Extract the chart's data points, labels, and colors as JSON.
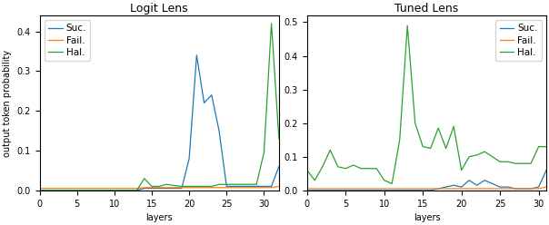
{
  "logit_lens": {
    "title": "Logit Lens",
    "suc": [
      0.0,
      0.0,
      0.0,
      0.0,
      0.0,
      0.0,
      0.0,
      0.0,
      0.0,
      0.0,
      0.0,
      0.0,
      0.0,
      0.0,
      0.005,
      0.005,
      0.005,
      0.005,
      0.005,
      0.005,
      0.08,
      0.34,
      0.22,
      0.24,
      0.15,
      0.01,
      0.01,
      0.01,
      0.01,
      0.01,
      0.01,
      0.01,
      0.06
    ],
    "fail": [
      0.005,
      0.005,
      0.005,
      0.005,
      0.005,
      0.005,
      0.005,
      0.005,
      0.005,
      0.005,
      0.005,
      0.005,
      0.005,
      0.005,
      0.007,
      0.007,
      0.007,
      0.007,
      0.007,
      0.007,
      0.007,
      0.007,
      0.007,
      0.007,
      0.007,
      0.007,
      0.007,
      0.007,
      0.007,
      0.007,
      0.007,
      0.007,
      0.01
    ],
    "hal": [
      0.0,
      0.0,
      0.0,
      0.0,
      0.0,
      0.0,
      0.0,
      0.0,
      0.0,
      0.0,
      0.0,
      0.0,
      0.0,
      0.0,
      0.03,
      0.01,
      0.01,
      0.015,
      0.012,
      0.01,
      0.01,
      0.01,
      0.01,
      0.01,
      0.015,
      0.015,
      0.015,
      0.015,
      0.015,
      0.015,
      0.095,
      0.42,
      0.13
    ],
    "ylim": [
      0,
      0.44
    ],
    "yticks": [
      0.0,
      0.1,
      0.2,
      0.3,
      0.4
    ],
    "legend_loc": "upper left"
  },
  "tuned_lens": {
    "title": "Tuned Lens",
    "suc": [
      0.0,
      0.0,
      0.0,
      0.0,
      0.0,
      0.0,
      0.0,
      0.0,
      0.0,
      0.0,
      0.0,
      0.0,
      0.0,
      0.0,
      0.0,
      0.0,
      0.0,
      0.005,
      0.01,
      0.015,
      0.01,
      0.03,
      0.015,
      0.03,
      0.02,
      0.01,
      0.01,
      0.005,
      0.005,
      0.005,
      0.01,
      0.06
    ],
    "fail": [
      0.005,
      0.005,
      0.005,
      0.005,
      0.005,
      0.005,
      0.005,
      0.005,
      0.005,
      0.005,
      0.005,
      0.005,
      0.005,
      0.005,
      0.005,
      0.005,
      0.005,
      0.005,
      0.005,
      0.005,
      0.005,
      0.005,
      0.005,
      0.005,
      0.005,
      0.005,
      0.005,
      0.005,
      0.005,
      0.005,
      0.005,
      0.01
    ],
    "hal": [
      0.06,
      0.03,
      0.07,
      0.12,
      0.07,
      0.065,
      0.075,
      0.065,
      0.065,
      0.065,
      0.03,
      0.02,
      0.15,
      0.49,
      0.2,
      0.13,
      0.125,
      0.185,
      0.125,
      0.19,
      0.06,
      0.1,
      0.105,
      0.115,
      0.1,
      0.085,
      0.085,
      0.08,
      0.08,
      0.08,
      0.13,
      0.13
    ],
    "ylim": [
      0,
      0.52
    ],
    "yticks": [
      0.0,
      0.1,
      0.2,
      0.3,
      0.4,
      0.5
    ],
    "legend_loc": "upper right"
  },
  "colors": {
    "suc": "#1f77b4",
    "fail": "#ff7f0e",
    "hal": "#2ca02c"
  },
  "xlabel": "layers",
  "ylabel": "output token probability",
  "legend_labels": [
    "Suc.",
    "Fail.",
    "Hal."
  ],
  "figsize": [
    6.04,
    2.48
  ],
  "dpi": 100
}
